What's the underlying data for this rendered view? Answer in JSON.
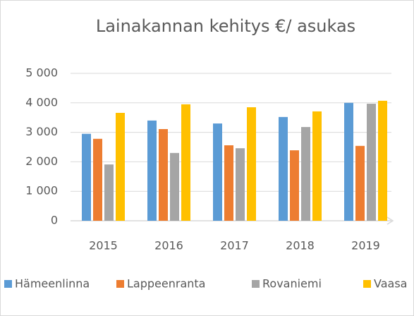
{
  "chart_data": {
    "type": "bar",
    "title": "Lainakannan kehitys €/ asukas",
    "categories": [
      "2015",
      "2016",
      "2017",
      "2018",
      "2019"
    ],
    "series": [
      {
        "name": "Hämeenlinna",
        "color": "#5b9bd5",
        "values": [
          2950,
          3400,
          3300,
          3520,
          4000
        ]
      },
      {
        "name": "Lappeenranta",
        "color": "#ed7d31",
        "values": [
          2780,
          3110,
          2560,
          2390,
          2540
        ]
      },
      {
        "name": "Rovaniemi",
        "color": "#a5a5a5",
        "values": [
          1910,
          2300,
          2460,
          3180,
          3970
        ]
      },
      {
        "name": "Vaasa",
        "color": "#ffc000",
        "values": [
          3660,
          3950,
          3850,
          3710,
          4070
        ]
      }
    ],
    "ylim": [
      0,
      5000
    ],
    "yticks": [
      0,
      {
        "value": 1000,
        "label": "1 000"
      },
      {
        "value": 2000,
        "label": "2 000"
      },
      {
        "value": 3000,
        "label": "3 000"
      },
      {
        "value": 4000,
        "label": "4 000"
      },
      {
        "value": 5000,
        "label": "5 000"
      }
    ],
    "grid": true,
    "legend": "bottom"
  }
}
